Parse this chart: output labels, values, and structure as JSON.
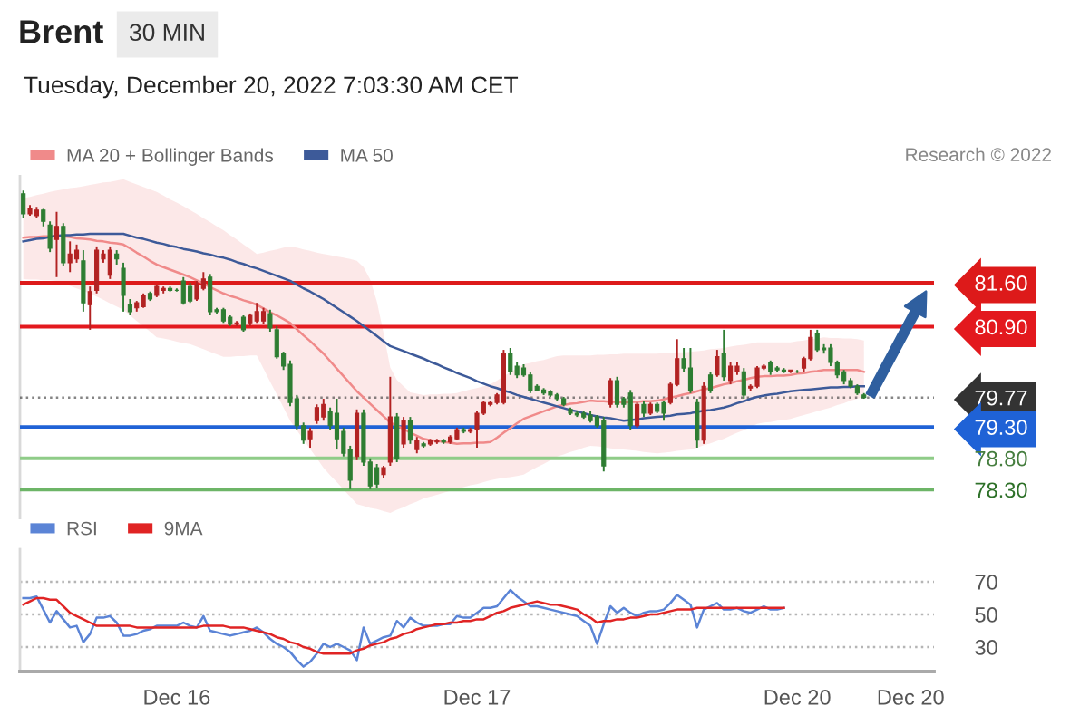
{
  "chart_data": [
    {
      "type": "candlestick",
      "title": "Brent",
      "subtitle": "Tuesday, December 20, 2022 7:03:30 AM CET",
      "annotations": [
        "Research © 2022",
        "30 MIN"
      ],
      "categories": [
        null,
        null,
        null,
        null,
        null,
        null,
        null,
        null,
        null,
        null,
        null,
        null,
        null,
        null,
        null,
        null,
        null,
        null,
        null,
        null,
        null,
        null,
        null,
        null,
        null,
        null,
        null,
        null,
        null,
        null,
        null,
        null,
        null,
        null,
        null,
        null,
        null,
        null,
        null,
        null,
        null,
        null,
        null,
        null,
        null,
        null,
        null,
        null,
        null,
        null,
        null,
        null,
        null,
        null,
        null,
        null,
        null,
        null,
        null,
        null,
        null,
        null,
        null,
        null,
        null,
        null,
        null,
        null,
        null,
        null,
        null,
        null,
        null,
        null,
        null,
        null,
        null,
        null,
        null,
        null,
        null,
        null,
        null,
        null,
        null,
        null,
        null,
        null,
        null,
        null,
        null,
        null,
        null,
        null,
        null,
        null,
        null,
        null,
        null,
        null,
        null,
        null,
        null,
        null,
        null,
        null,
        null,
        null,
        null,
        null,
        null,
        null,
        null,
        null,
        null,
        null,
        null,
        null,
        null,
        null,
        null,
        null,
        null,
        null,
        null,
        null,
        null
      ],
      "ohlc": [
        [
          83.02,
          83.07,
          82.64,
          82.7
        ],
        [
          82.7,
          82.84,
          82.67,
          82.78
        ],
        [
          82.67,
          82.81,
          82.64,
          82.76
        ],
        [
          82.76,
          82.78,
          82.5,
          82.58
        ],
        [
          82.52,
          82.58,
          82.09,
          82.15
        ],
        [
          82.29,
          82.73,
          81.69,
          82.5
        ],
        [
          82.5,
          82.55,
          81.86,
          81.92
        ],
        [
          81.92,
          82.26,
          81.77,
          82.06
        ],
        [
          81.98,
          82.21,
          81.92,
          82.12
        ],
        [
          81.95,
          82.12,
          81.14,
          81.28
        ],
        [
          81.25,
          81.54,
          80.85,
          81.46
        ],
        [
          81.48,
          82.18,
          81.43,
          82.12
        ],
        [
          81.98,
          82.12,
          81.92,
          82.06
        ],
        [
          81.72,
          82.18,
          81.66,
          82.12
        ],
        [
          82.06,
          82.12,
          81.89,
          81.98
        ],
        [
          81.83,
          81.92,
          81.14,
          81.4
        ],
        [
          81.25,
          81.34,
          81.08,
          81.14
        ],
        [
          81.2,
          81.31,
          81.14,
          81.28
        ],
        [
          81.22,
          81.43,
          81.2,
          81.4
        ],
        [
          81.43,
          81.46,
          81.31,
          81.34
        ],
        [
          81.4,
          81.57,
          81.37,
          81.54
        ],
        [
          81.48,
          81.54,
          81.43,
          81.51
        ],
        [
          81.51,
          81.54,
          81.46,
          81.48
        ],
        [
          81.48,
          81.51,
          81.46,
          81.48
        ],
        [
          81.63,
          81.69,
          81.25,
          81.28
        ],
        [
          81.54,
          81.6,
          81.28,
          81.31
        ],
        [
          81.34,
          81.63,
          81.31,
          81.57
        ],
        [
          81.51,
          81.77,
          81.48,
          81.66
        ],
        [
          81.69,
          81.74,
          81.08,
          81.14
        ],
        [
          81.17,
          81.2,
          81.11,
          81.14
        ],
        [
          81.17,
          81.2,
          80.96,
          80.99
        ],
        [
          81.05,
          81.08,
          80.91,
          80.94
        ],
        [
          80.94,
          80.99,
          80.91,
          80.96
        ],
        [
          81.05,
          81.08,
          80.82,
          80.85
        ],
        [
          80.96,
          81.11,
          80.91,
          81.08
        ],
        [
          80.99,
          81.28,
          80.96,
          81.14
        ],
        [
          80.99,
          81.2,
          80.94,
          81.14
        ],
        [
          81.11,
          81.17,
          80.82,
          80.88
        ],
        [
          80.85,
          80.91,
          80.39,
          80.42
        ],
        [
          80.47,
          80.5,
          80.21,
          80.27
        ],
        [
          80.3,
          80.36,
          79.63,
          79.69
        ],
        [
          79.75,
          79.81,
          79.26,
          79.32
        ],
        [
          79.32,
          79.37,
          79.03,
          79.09
        ],
        [
          79.11,
          79.29,
          78.97,
          79.23
        ],
        [
          79.4,
          79.66,
          79.35,
          79.61
        ],
        [
          79.46,
          79.75,
          79.4,
          79.66
        ],
        [
          79.55,
          79.61,
          79.26,
          79.32
        ],
        [
          79.52,
          79.75,
          78.94,
          79.11
        ],
        [
          79.23,
          79.29,
          78.83,
          78.88
        ],
        [
          78.94,
          79.0,
          78.31,
          78.45
        ],
        [
          78.83,
          79.58,
          78.77,
          79.52
        ],
        [
          79.52,
          79.58,
          78.68,
          78.74
        ],
        [
          78.74,
          78.8,
          78.31,
          78.36
        ],
        [
          78.65,
          78.71,
          78.33,
          78.39
        ],
        [
          78.54,
          78.68,
          78.48,
          78.65
        ],
        [
          78.74,
          80.1,
          78.68,
          79.46
        ],
        [
          79.46,
          79.52,
          78.74,
          78.8
        ],
        [
          79.03,
          79.46,
          78.97,
          79.4
        ],
        [
          79.4,
          79.46,
          79.03,
          79.09
        ],
        [
          78.94,
          79.14,
          78.88,
          79.09
        ],
        [
          79.03,
          79.06,
          78.97,
          79.0
        ],
        [
          79.03,
          79.11,
          79.0,
          79.09
        ],
        [
          79.06,
          79.11,
          79.03,
          79.09
        ],
        [
          79.09,
          79.11,
          79.03,
          79.06
        ],
        [
          79.06,
          79.17,
          79.03,
          79.14
        ],
        [
          79.11,
          79.29,
          79.09,
          79.26
        ],
        [
          79.26,
          79.29,
          79.2,
          79.23
        ],
        [
          79.23,
          79.29,
          79.2,
          79.26
        ],
        [
          79.26,
          79.55,
          78.97,
          79.52
        ],
        [
          79.52,
          79.72,
          79.49,
          79.69
        ],
        [
          79.66,
          79.72,
          79.63,
          79.69
        ],
        [
          79.69,
          79.84,
          79.66,
          79.81
        ],
        [
          79.69,
          80.53,
          79.66,
          80.47
        ],
        [
          80.47,
          80.56,
          80.13,
          80.18
        ],
        [
          80.27,
          80.33,
          80.08,
          80.13
        ],
        [
          80.24,
          80.3,
          80.1,
          80.13
        ],
        [
          80.13,
          80.18,
          79.84,
          79.89
        ],
        [
          79.95,
          79.98,
          79.87,
          79.89
        ],
        [
          79.89,
          79.92,
          79.81,
          79.84
        ],
        [
          79.87,
          79.89,
          79.78,
          79.81
        ],
        [
          79.81,
          79.84,
          79.72,
          79.75
        ],
        [
          79.75,
          79.78,
          79.63,
          79.66
        ],
        [
          79.58,
          79.61,
          79.49,
          79.52
        ],
        [
          79.52,
          79.55,
          79.46,
          79.49
        ],
        [
          79.52,
          79.55,
          79.43,
          79.46
        ],
        [
          79.49,
          79.55,
          79.37,
          79.4
        ],
        [
          79.46,
          79.49,
          79.29,
          79.32
        ],
        [
          79.4,
          79.46,
          78.59,
          78.68
        ],
        [
          79.66,
          80.08,
          79.61,
          80.04
        ],
        [
          80.04,
          80.1,
          79.61,
          79.66
        ],
        [
          79.75,
          79.78,
          79.61,
          79.66
        ],
        [
          79.84,
          79.89,
          79.26,
          79.32
        ],
        [
          79.32,
          79.69,
          79.29,
          79.66
        ],
        [
          79.66,
          79.72,
          79.46,
          79.52
        ],
        [
          79.52,
          79.69,
          79.49,
          79.66
        ],
        [
          79.66,
          79.69,
          79.52,
          79.55
        ],
        [
          79.69,
          79.72,
          79.4,
          79.52
        ],
        [
          79.69,
          80.01,
          79.66,
          79.98
        ],
        [
          79.98,
          80.7,
          79.95,
          80.39
        ],
        [
          80.39,
          80.56,
          80.18,
          80.24
        ],
        [
          80.24,
          80.56,
          79.84,
          79.89
        ],
        [
          79.69,
          79.75,
          78.97,
          79.09
        ],
        [
          79.09,
          80.01,
          79.03,
          79.95
        ],
        [
          80.13,
          80.18,
          79.84,
          79.89
        ],
        [
          80.13,
          80.53,
          80.1,
          80.42
        ],
        [
          80.47,
          80.85,
          80.04,
          80.1
        ],
        [
          80.04,
          80.33,
          79.98,
          80.27
        ],
        [
          80.18,
          80.33,
          80.13,
          80.27
        ],
        [
          80.18,
          80.24,
          79.75,
          79.81
        ],
        [
          79.92,
          79.98,
          79.87,
          79.95
        ],
        [
          79.95,
          80.27,
          79.92,
          80.24
        ],
        [
          80.24,
          80.3,
          80.21,
          80.27
        ],
        [
          80.33,
          80.36,
          80.13,
          80.18
        ],
        [
          80.24,
          80.27,
          80.18,
          80.21
        ],
        [
          80.21,
          80.24,
          80.16,
          80.18
        ],
        [
          80.18,
          80.21,
          80.16,
          80.21
        ],
        [
          80.18,
          80.21,
          80.16,
          80.18
        ],
        [
          80.24,
          80.42,
          80.18,
          80.39
        ],
        [
          80.39,
          80.85,
          80.36,
          80.73
        ],
        [
          80.79,
          80.85,
          80.5,
          80.53
        ],
        [
          80.56,
          80.62,
          80.47,
          80.53
        ],
        [
          80.56,
          80.62,
          80.27,
          80.33
        ],
        [
          80.33,
          80.36,
          80.08,
          80.13
        ],
        [
          80.18,
          80.21,
          79.98,
          80.04
        ],
        [
          80.04,
          80.08,
          79.92,
          79.95
        ],
        [
          79.95,
          79.98,
          79.81,
          79.84
        ],
        [
          79.81,
          79.84,
          79.75,
          79.77
        ]
      ],
      "colors": [
        "#2e7d32",
        "#b22222",
        "#b22222",
        "#2e7d32",
        "#2e7d32",
        "#b22222",
        "#2e7d32",
        "#b22222",
        "#b22222",
        "#2e7d32",
        "#b22222",
        "#b22222",
        "#b22222",
        "#b22222",
        "#2e7d32",
        "#2e7d32",
        "#2e7d32",
        "#b22222",
        "#b22222",
        "#2e7d32",
        "#b22222",
        "#b22222",
        "#2e7d32",
        "#2e7d32",
        "#2e7d32",
        "#2e7d32",
        "#b22222",
        "#b22222",
        "#2e7d32",
        "#2e7d32",
        "#2e7d32",
        "#2e7d32",
        "#b22222",
        "#2e7d32",
        "#b22222",
        "#b22222",
        "#b22222",
        "#2e7d32",
        "#2e7d32",
        "#2e7d32",
        "#2e7d32",
        "#2e7d32",
        "#2e7d32",
        "#b22222",
        "#b22222",
        "#b22222",
        "#2e7d32",
        "#2e7d32",
        "#2e7d32",
        "#2e7d32",
        "#b22222",
        "#2e7d32",
        "#2e7d32",
        "#2e7d32",
        "#b22222",
        "#b22222",
        "#2e7d32",
        "#b22222",
        "#2e7d32",
        "#b22222",
        "#2e7d32",
        "#b22222",
        "#b22222",
        "#2e7d32",
        "#b22222",
        "#b22222",
        "#2e7d32",
        "#b22222",
        "#b22222",
        "#b22222",
        "#b22222",
        "#b22222",
        "#b22222",
        "#2e7d32",
        "#2e7d32",
        "#2e7d32",
        "#2e7d32",
        "#2e7d32",
        "#2e7d32",
        "#2e7d32",
        "#2e7d32",
        "#2e7d32",
        "#2e7d32",
        "#2e7d32",
        "#2e7d32",
        "#2e7d32",
        "#2e7d32",
        "#2e7d32",
        "#b22222",
        "#2e7d32",
        "#2e7d32",
        "#2e7d32",
        "#b22222",
        "#2e7d32",
        "#b22222",
        "#2e7d32",
        "#2e7d32",
        "#b22222",
        "#b22222",
        "#2e7d32",
        "#2e7d32",
        "#2e7d32",
        "#b22222",
        "#2e7d32",
        "#b22222",
        "#2e7d32",
        "#b22222",
        "#b22222",
        "#2e7d32",
        "#b22222",
        "#b22222",
        "#b22222",
        "#2e7d32",
        "#2e7d32",
        "#2e7d32",
        "#b22222",
        "#2e7d32",
        "#b22222",
        "#b22222",
        "#2e7d32",
        "#2e7d32",
        "#2e7d32",
        "#2e7d32",
        "#2e7d32",
        "#2e7d32",
        "#2e7d32",
        "#2e7d32"
      ],
      "series": [
        {
          "name": "MA 20 + Bollinger Bands",
          "type": "line",
          "color": "#f08a8a",
          "values": [
            82.32,
            82.33,
            82.33,
            82.34,
            82.34,
            82.35,
            82.34,
            82.33,
            82.31,
            82.3,
            82.29,
            82.27,
            82.26,
            82.24,
            82.23,
            82.21,
            82.15,
            82.08,
            82.02,
            81.95,
            81.89,
            81.85,
            81.81,
            81.77,
            81.73,
            81.69,
            81.64,
            81.59,
            81.53,
            81.48,
            81.43,
            81.39,
            81.36,
            81.32,
            81.29,
            81.25,
            81.19,
            81.13,
            81.08,
            81.02,
            80.96,
            80.86,
            80.76,
            80.67,
            80.57,
            80.47,
            80.35,
            80.23,
            80.11,
            79.99,
            79.87,
            79.77,
            79.67,
            79.57,
            79.47,
            79.37,
            79.32,
            79.27,
            79.21,
            79.16,
            79.11,
            79.09,
            79.08,
            79.06,
            79.05,
            79.03,
            79.04,
            79.04,
            79.05,
            79.05,
            79.06,
            79.13,
            79.21,
            79.28,
            79.36,
            79.43,
            79.47,
            79.51,
            79.55,
            79.59,
            79.63,
            79.65,
            79.67,
            79.68,
            79.7,
            79.72,
            79.71,
            79.71,
            79.7,
            79.7,
            79.69,
            79.7,
            79.7,
            79.71,
            79.71,
            79.72,
            79.74,
            79.77,
            79.79,
            79.82,
            79.84,
            79.87,
            79.9,
            79.92,
            79.95,
            79.98,
            80.0,
            80.03,
            80.05,
            80.08,
            80.1,
            80.11,
            80.11,
            80.12,
            80.12,
            80.13,
            80.15,
            80.16,
            80.18,
            80.19,
            80.21,
            80.21,
            80.21,
            80.21,
            80.21,
            80.21,
            80.18
          ],
          "lower": [
            81.66,
            81.65,
            81.65,
            81.64,
            81.64,
            81.63,
            81.59,
            81.55,
            81.51,
            81.47,
            81.43,
            81.38,
            81.33,
            81.27,
            81.22,
            81.17,
            81.08,
            80.99,
            80.91,
            80.82,
            80.73,
            80.71,
            80.69,
            80.66,
            80.64,
            80.62,
            80.58,
            80.54,
            80.5,
            80.46,
            80.42,
            80.42,
            80.43,
            80.43,
            80.44,
            80.44,
            80.23,
            80.02,
            79.82,
            79.61,
            79.4,
            79.25,
            79.1,
            78.95,
            78.8,
            78.65,
            78.53,
            78.42,
            78.3,
            78.19,
            78.07,
            78.04,
            78.01,
            77.99,
            77.96,
            77.93,
            77.98,
            78.02,
            78.07,
            78.11,
            78.16,
            78.19,
            78.22,
            78.25,
            78.28,
            78.31,
            78.34,
            78.37,
            78.39,
            78.42,
            78.45,
            78.47,
            78.49,
            78.5,
            78.52,
            78.54,
            78.6,
            78.66,
            78.71,
            78.77,
            78.83,
            78.86,
            78.9,
            78.93,
            78.97,
            79.0,
            78.99,
            78.98,
            78.96,
            78.95,
            78.94,
            78.93,
            78.92,
            78.9,
            78.89,
            78.88,
            78.89,
            78.9,
            78.92,
            78.93,
            78.94,
            78.97,
            79.01,
            79.04,
            79.08,
            79.11,
            79.16,
            79.21,
            79.25,
            79.3,
            79.35,
            79.37,
            79.38,
            79.4,
            79.41,
            79.43,
            79.46,
            79.49,
            79.52,
            79.55,
            79.58,
            79.61,
            79.65,
            79.68,
            79.72,
            79.75,
            79.78
          ],
          "upper": [
            82.95,
            82.97,
            83.0,
            83.02,
            83.05,
            83.07,
            83.09,
            83.11,
            83.12,
            83.14,
            83.16,
            83.18,
            83.2,
            83.21,
            83.23,
            83.25,
            83.21,
            83.17,
            83.13,
            83.09,
            83.05,
            82.99,
            82.93,
            82.88,
            82.82,
            82.76,
            82.7,
            82.63,
            82.57,
            82.5,
            82.44,
            82.36,
            82.29,
            82.21,
            82.14,
            82.06,
            82.08,
            82.11,
            82.13,
            82.16,
            82.18,
            82.16,
            82.13,
            82.11,
            82.08,
            82.06,
            82.04,
            82.02,
            82.0,
            81.98,
            81.95,
            81.85,
            81.65,
            81.3,
            80.8,
            80.25,
            80.05,
            79.95,
            79.85,
            79.83,
            79.81,
            79.82,
            79.82,
            79.83,
            79.83,
            79.84,
            79.87,
            79.9,
            79.92,
            79.95,
            79.98,
            80.04,
            80.11,
            80.17,
            80.24,
            80.3,
            80.32,
            80.35,
            80.37,
            80.4,
            80.43,
            80.44,
            80.44,
            80.44,
            80.44,
            80.44,
            80.45,
            80.45,
            80.46,
            80.46,
            80.47,
            80.47,
            80.47,
            80.47,
            80.47,
            80.47,
            80.48,
            80.48,
            80.49,
            80.49,
            80.5,
            80.51,
            80.52,
            80.54,
            80.55,
            80.56,
            80.58,
            80.6,
            80.61,
            80.63,
            80.65,
            80.65,
            80.65,
            80.65,
            80.65,
            80.65,
            80.67,
            80.68,
            80.7,
            80.71,
            80.73,
            80.72,
            80.72,
            80.71,
            80.71,
            80.7,
            80.68
          ]
        },
        {
          "name": "MA 50",
          "type": "line",
          "color": "#3d5a99",
          "values": [
            82.26,
            82.28,
            82.3,
            82.31,
            82.33,
            82.35,
            82.36,
            82.36,
            82.37,
            82.37,
            82.38,
            82.38,
            82.38,
            82.38,
            82.38,
            82.38,
            82.35,
            82.32,
            82.3,
            82.27,
            82.24,
            82.22,
            82.19,
            82.17,
            82.14,
            82.12,
            82.1,
            82.07,
            82.05,
            82.02,
            82.0,
            81.97,
            81.93,
            81.9,
            81.86,
            81.83,
            81.79,
            81.75,
            81.71,
            81.67,
            81.63,
            81.57,
            81.51,
            81.46,
            81.4,
            81.34,
            81.27,
            81.2,
            81.13,
            81.06,
            80.99,
            80.91,
            80.83,
            80.75,
            80.67,
            80.59,
            80.55,
            80.51,
            80.47,
            80.43,
            80.39,
            80.34,
            80.3,
            80.25,
            80.21,
            80.16,
            80.12,
            80.08,
            80.03,
            79.99,
            79.95,
            79.92,
            79.88,
            79.85,
            79.81,
            79.78,
            79.75,
            79.72,
            79.69,
            79.66,
            79.63,
            79.6,
            79.57,
            79.55,
            79.52,
            79.49,
            79.47,
            79.45,
            79.44,
            79.42,
            79.4,
            79.41,
            79.42,
            79.44,
            79.45,
            79.46,
            79.47,
            79.48,
            79.5,
            79.51,
            79.52,
            79.54,
            79.56,
            79.57,
            79.59,
            79.61,
            79.64,
            79.68,
            79.71,
            79.75,
            79.78,
            79.8,
            79.82,
            79.83,
            79.85,
            79.87,
            79.88,
            79.89,
            79.9,
            79.91,
            79.92,
            79.93,
            79.93,
            79.94,
            79.94,
            79.95,
            79.95
          ]
        }
      ],
      "ylim": [
        77.85,
        83.3
      ],
      "yticks": [
        {
          "value": 81.6,
          "label": "81.60"
        },
        {
          "value": 80.9,
          "label": "80.90"
        },
        {
          "value": 79.77,
          "label": "79.77"
        },
        {
          "value": 79.3,
          "label": "79.30"
        },
        {
          "value": 78.8,
          "label": "78.80"
        },
        {
          "value": 78.3,
          "label": "78.30"
        }
      ],
      "tick_labels": "y",
      "legend": "top left",
      "ref_lines": [
        {
          "axis": "y",
          "value": 81.6,
          "color": "#dd1a1a",
          "line_style": "solid"
        },
        {
          "axis": "y",
          "value": 80.9,
          "color": "#e3191e",
          "line_style": "solid"
        },
        {
          "axis": "y",
          "value": 79.77,
          "color": "#333333",
          "line_style": "dotted"
        },
        {
          "axis": "y",
          "value": 79.3,
          "color": "#1f62d6",
          "line_style": "solid"
        },
        {
          "axis": "y",
          "value": 78.8,
          "color": "#8fcc88",
          "line_style": "solid"
        },
        {
          "axis": "y",
          "value": 78.3,
          "color": "#6db567",
          "line_style": "solid"
        }
      ]
    },
    {
      "type": "line",
      "categories": [
        null,
        null,
        null,
        null,
        null,
        null,
        null,
        null,
        null,
        null,
        null,
        null,
        null,
        null,
        null,
        null,
        null,
        null,
        null,
        null,
        null,
        null,
        null,
        "Dec 16",
        null,
        null,
        null,
        null,
        null,
        null,
        null,
        null,
        null,
        null,
        null,
        null,
        null,
        null,
        null,
        null,
        null,
        null,
        null,
        null,
        null,
        null,
        null,
        null,
        null,
        null,
        null,
        null,
        null,
        null,
        null,
        null,
        null,
        null,
        null,
        null,
        null,
        null,
        null,
        null,
        null,
        null,
        null,
        null,
        "Dec 17",
        null,
        null,
        null,
        null,
        null,
        null,
        null,
        null,
        null,
        null,
        null,
        null,
        null,
        null,
        null,
        null,
        null,
        null,
        null,
        null,
        null,
        null,
        null,
        null,
        null,
        null,
        null,
        null,
        null,
        null,
        null,
        null,
        null,
        null,
        null,
        null,
        null,
        null,
        null,
        null,
        null,
        null,
        null,
        null,
        null,
        null,
        null,
        "Dec 20",
        null,
        null,
        null,
        null,
        null,
        null,
        null,
        null,
        null,
        null,
        null,
        null,
        null,
        null,
        null,
        null,
        "Dec 20",
        null,
        null,
        null
      ],
      "series": [
        {
          "name": "RSI",
          "color": "#5b84d6",
          "values": [
            60,
            60,
            61,
            53,
            45,
            52,
            47,
            42,
            43,
            33,
            38,
            48,
            48,
            49,
            45,
            37,
            37,
            38,
            40,
            41,
            43,
            43,
            43,
            43,
            45,
            43,
            42,
            49,
            40,
            39,
            38,
            37,
            38,
            39,
            40,
            42,
            39,
            35,
            32,
            30,
            27,
            22,
            18,
            21,
            26,
            32,
            30,
            32,
            30,
            28,
            22,
            42,
            32,
            34,
            36,
            37,
            46,
            42,
            48,
            45,
            43,
            43,
            43,
            44,
            44,
            49,
            48,
            48,
            51,
            54,
            54,
            55,
            60,
            65,
            61,
            58,
            55,
            55,
            54,
            53,
            52,
            51,
            50,
            49,
            46,
            43,
            32,
            44,
            55,
            51,
            54,
            51,
            49,
            51,
            52,
            52,
            53,
            57,
            62,
            59,
            56,
            42,
            53,
            55,
            57,
            53,
            53,
            54,
            52,
            51,
            53,
            55,
            53,
            53,
            54,
            null,
            null,
            null,
            null,
            null,
            null,
            null,
            null,
            null,
            null,
            null,
            null,
            null,
            null,
            null,
            null,
            null,
            null,
            null,
            null,
            null,
            null
          ]
        },
        {
          "name": "9MA",
          "color": "#e02424",
          "values": [
            56,
            58,
            60,
            60,
            59,
            59,
            55,
            51,
            49,
            47,
            45,
            43,
            43,
            43,
            43,
            43,
            43,
            42,
            42,
            42,
            42,
            42,
            42,
            42,
            42,
            42,
            42,
            43,
            43,
            43,
            43,
            42,
            42,
            42,
            41,
            40,
            39,
            38,
            36,
            35,
            33,
            32,
            30,
            29,
            27,
            26,
            26,
            26,
            26,
            26,
            28,
            29,
            31,
            32,
            33,
            35,
            36,
            38,
            39,
            41,
            42,
            43,
            44,
            44,
            45,
            45,
            46,
            46,
            47,
            47,
            49,
            51,
            52,
            54,
            55,
            56,
            57,
            58,
            57,
            56,
            56,
            55,
            54,
            53,
            50,
            48,
            45,
            46,
            46,
            47,
            47,
            48,
            48,
            49,
            50,
            50,
            51,
            52,
            53,
            53,
            53,
            54,
            54,
            54,
            54,
            54,
            54,
            54,
            54,
            54,
            54,
            54,
            54,
            54,
            54,
            null,
            null,
            null,
            null,
            null,
            null,
            null,
            null,
            null,
            null,
            null,
            null,
            null,
            null,
            null,
            null,
            null,
            null,
            null,
            null,
            null,
            null
          ]
        }
      ],
      "ylim": [
        15,
        90
      ],
      "yticks": [
        70,
        50,
        30
      ],
      "grid": "y",
      "legend": "top left"
    }
  ]
}
